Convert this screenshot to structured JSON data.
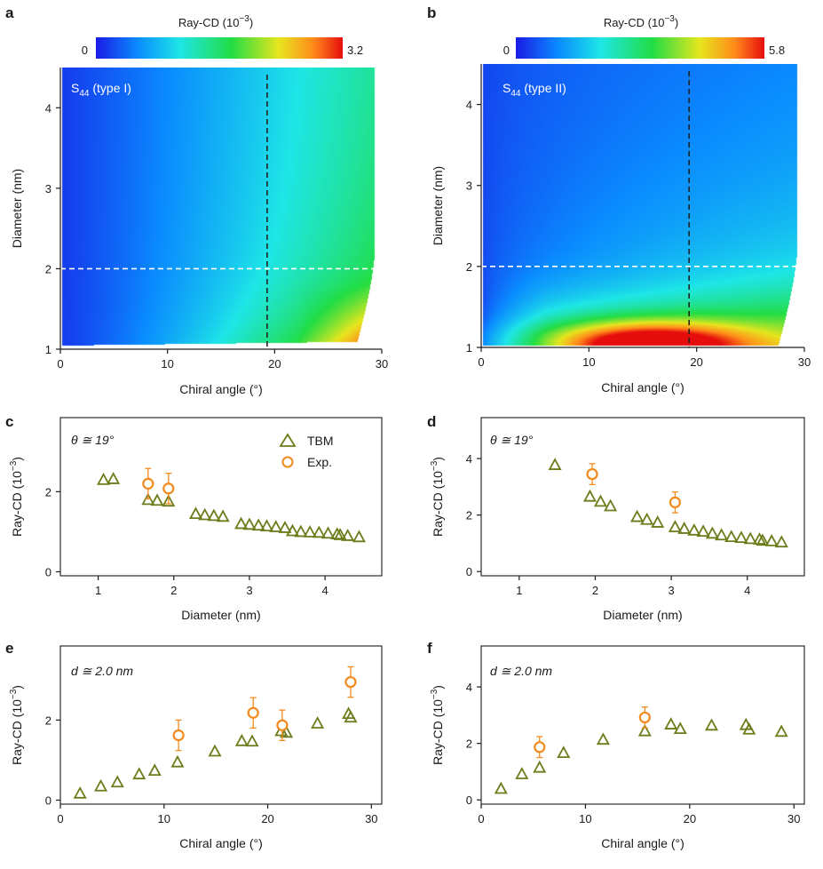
{
  "colormap": {
    "stops": [
      "#1a1ae6",
      "#0a8cff",
      "#1ee6e6",
      "#22dd44",
      "#e6e61e",
      "#ff8c1a",
      "#e60d0d"
    ]
  },
  "symbols": {
    "tbm_color": "#6b7d1a",
    "exp_color": "#f28a1e"
  },
  "chart_data": [
    {
      "panel": "a",
      "type": "heatmap",
      "colorbar": {
        "title": "Ray-CD (10",
        "title_exp": "−3",
        "title_close": ")",
        "min_label": "0",
        "max_label": "3.2",
        "min": 0,
        "max": 3.2
      },
      "xlabel": "Chiral angle (°)",
      "ylabel": "Diameter (nm)",
      "xlim": [
        0,
        30
      ],
      "ylim": [
        1,
        4.5
      ],
      "xticks": [
        "0",
        "10",
        "20",
        "30"
      ],
      "yticks": [
        "1",
        "2",
        "3",
        "4"
      ],
      "annotation": {
        "base": "S",
        "sub": "44",
        "suffix": " (type I)"
      },
      "guides": {
        "vertical_x": 19.3,
        "horizontal_y": 2.0
      },
      "field": "type1"
    },
    {
      "panel": "b",
      "type": "heatmap",
      "colorbar": {
        "title": "Ray-CD (10",
        "title_exp": "−3",
        "title_close": ")",
        "min_label": "0",
        "max_label": "5.8",
        "min": 0,
        "max": 5.8
      },
      "xlabel": "Chiral angle (°)",
      "ylabel": "Diameter (nm)",
      "xlim": [
        0,
        30
      ],
      "ylim": [
        1,
        4.5
      ],
      "xticks": [
        "0",
        "10",
        "20",
        "30"
      ],
      "yticks": [
        "1",
        "2",
        "3",
        "4"
      ],
      "annotation": {
        "base": "S",
        "sub": "44",
        "suffix": " (type II)"
      },
      "guides": {
        "vertical_x": 19.3,
        "horizontal_y": 2.0
      },
      "field": "type2"
    },
    {
      "panel": "c",
      "type": "scatter",
      "annotation": "θ ≅ 19°",
      "xlabel": "Diameter (nm)",
      "ylabel": "Ray-CD (10",
      "ylabel_exp": "−3",
      "ylabel_close": ")",
      "xlim": [
        0.5,
        4.75
      ],
      "ylim": [
        -0.1,
        3.85
      ],
      "xticks": [
        1,
        2,
        3,
        4
      ],
      "yticks": [
        0,
        2
      ],
      "legend": {
        "tbm": "TBM",
        "exp": "Exp."
      },
      "tbm": {
        "x": [
          1.07,
          1.2,
          1.66,
          1.78,
          1.93,
          2.29,
          2.41,
          2.53,
          2.65,
          2.89,
          3.0,
          3.12,
          3.23,
          3.35,
          3.47,
          3.57,
          3.68,
          3.8,
          3.92,
          4.04,
          4.16,
          4.2,
          4.3,
          4.45
        ],
        "y": [
          2.3,
          2.32,
          1.8,
          1.78,
          1.76,
          1.45,
          1.42,
          1.4,
          1.38,
          1.2,
          1.18,
          1.16,
          1.14,
          1.12,
          1.1,
          1.02,
          1.0,
          0.99,
          0.98,
          0.96,
          0.94,
          0.92,
          0.9,
          0.87
        ]
      },
      "exp": {
        "x": [
          1.66,
          1.93
        ],
        "y": [
          2.2,
          2.08
        ],
        "err": [
          0.38,
          0.38
        ]
      }
    },
    {
      "panel": "d",
      "type": "scatter",
      "annotation": "θ ≅ 19°",
      "xlabel": "Diameter (nm)",
      "ylabel": "Ray-CD (10",
      "ylabel_exp": "−3",
      "ylabel_close": ")",
      "xlim": [
        0.5,
        4.75
      ],
      "ylim": [
        -0.15,
        5.45
      ],
      "xticks": [
        1,
        2,
        3,
        4
      ],
      "yticks": [
        0,
        2,
        4
      ],
      "tbm": {
        "x": [
          1.47,
          1.93,
          2.07,
          2.2,
          2.55,
          2.68,
          2.82,
          3.05,
          3.17,
          3.3,
          3.42,
          3.54,
          3.66,
          3.79,
          3.92,
          4.04,
          4.16,
          4.2,
          4.32,
          4.45
        ],
        "y": [
          3.78,
          2.66,
          2.48,
          2.32,
          1.94,
          1.84,
          1.74,
          1.58,
          1.52,
          1.46,
          1.42,
          1.35,
          1.29,
          1.23,
          1.2,
          1.16,
          1.14,
          1.1,
          1.08,
          1.04
        ]
      },
      "exp": {
        "x": [
          1.96,
          3.05
        ],
        "y": [
          3.45,
          2.45
        ],
        "err": [
          0.37,
          0.37
        ]
      }
    },
    {
      "panel": "e",
      "type": "scatter",
      "annotation": "d ≅ 2.0 nm",
      "xlabel": "Chiral angle (°)",
      "ylabel": "Ray-CD (10",
      "ylabel_exp": "−3",
      "ylabel_close": ")",
      "xlim": [
        0,
        31
      ],
      "ylim": [
        -0.1,
        3.85
      ],
      "xticks": [
        0,
        10,
        20,
        30
      ],
      "yticks": [
        0,
        2
      ],
      "tbm": {
        "x": [
          1.9,
          3.9,
          5.5,
          7.6,
          9.1,
          11.3,
          14.9,
          17.5,
          18.5,
          21.3,
          21.8,
          24.8,
          27.8,
          28.0
        ],
        "y": [
          0.17,
          0.35,
          0.45,
          0.65,
          0.74,
          0.95,
          1.22,
          1.48,
          1.47,
          1.73,
          1.69,
          1.92,
          2.16,
          2.07
        ]
      },
      "exp": {
        "x": [
          11.4,
          18.6,
          21.4,
          28.0
        ],
        "y": [
          1.62,
          2.18,
          1.87,
          2.95
        ],
        "err": [
          0.38,
          0.38,
          0.38,
          0.38
        ]
      }
    },
    {
      "panel": "f",
      "type": "scatter",
      "annotation": "d ≅ 2.0 nm",
      "xlabel": "Chiral angle (°)",
      "ylabel": "Ray-CD (10",
      "ylabel_exp": "−3",
      "ylabel_close": ")",
      "xlim": [
        0,
        31
      ],
      "ylim": [
        -0.15,
        5.45
      ],
      "xticks": [
        0,
        10,
        20,
        30
      ],
      "yticks": [
        0,
        2,
        4
      ],
      "tbm": {
        "x": [
          1.9,
          3.9,
          5.6,
          7.9,
          11.7,
          15.7,
          18.2,
          19.1,
          22.1,
          25.4,
          25.7,
          28.8
        ],
        "y": [
          0.4,
          0.92,
          1.15,
          1.67,
          2.14,
          2.44,
          2.68,
          2.52,
          2.64,
          2.66,
          2.5,
          2.42
        ]
      },
      "exp": {
        "x": [
          5.6,
          15.7
        ],
        "y": [
          1.87,
          2.92
        ],
        "err": [
          0.37,
          0.37
        ]
      }
    }
  ]
}
